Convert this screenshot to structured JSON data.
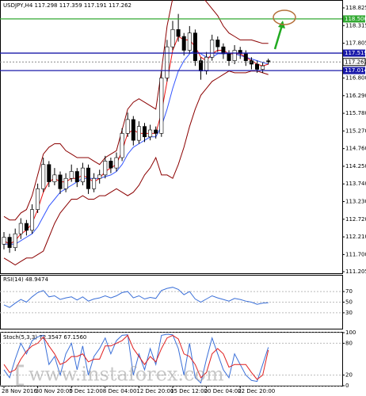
{
  "chart_data": [
    {
      "type": "candlestick",
      "title": "USDJPY,H4 117.298 117.359 117.191 117.262",
      "categories": [
        "28 Nov 2016",
        null,
        null,
        null,
        null,
        null,
        "30 Nov 20:00",
        null,
        null,
        null,
        null,
        null,
        "5 Dec 12:00",
        null,
        null,
        null,
        null,
        null,
        "8 Dec 04:00",
        null,
        null,
        null,
        null,
        null,
        "12 Dec 20:00",
        null,
        null,
        null,
        null,
        null,
        "15 Dec 12:00",
        null,
        null,
        null,
        null,
        null,
        "20 Dec 04:00",
        null,
        null,
        null,
        null,
        null,
        "22 Dec 20:00",
        null,
        null,
        null,
        null,
        null
      ],
      "candles": [
        [
          112.0,
          112.35,
          111.85,
          112.2
        ],
        [
          112.2,
          112.3,
          111.75,
          111.9
        ],
        [
          111.9,
          112.45,
          111.8,
          112.3
        ],
        [
          112.3,
          112.75,
          112.15,
          112.6
        ],
        [
          112.6,
          112.7,
          112.25,
          112.4
        ],
        [
          112.4,
          113.15,
          112.3,
          113.0
        ],
        [
          113.0,
          113.75,
          112.9,
          113.6
        ],
        [
          113.6,
          114.5,
          113.5,
          114.3
        ],
        [
          114.3,
          114.4,
          113.65,
          113.8
        ],
        [
          113.8,
          114.2,
          113.7,
          114.0
        ],
        [
          114.0,
          114.1,
          113.45,
          113.6
        ],
        [
          113.6,
          114.05,
          113.5,
          113.9
        ],
        [
          113.9,
          114.3,
          113.8,
          114.1
        ],
        [
          114.1,
          114.2,
          113.65,
          113.8
        ],
        [
          113.8,
          114.35,
          113.7,
          114.2
        ],
        [
          114.2,
          114.3,
          113.45,
          113.6
        ],
        [
          113.6,
          114.05,
          113.5,
          113.9
        ],
        [
          113.9,
          114.15,
          113.75,
          114.0
        ],
        [
          114.0,
          114.55,
          113.9,
          114.4
        ],
        [
          114.4,
          114.5,
          114.05,
          114.2
        ],
        [
          114.2,
          114.65,
          114.1,
          114.5
        ],
        [
          114.5,
          115.35,
          114.4,
          115.2
        ],
        [
          115.2,
          115.8,
          115.1,
          115.6
        ],
        [
          115.6,
          115.7,
          114.85,
          115.0
        ],
        [
          115.0,
          115.55,
          114.9,
          115.4
        ],
        [
          115.4,
          115.5,
          114.95,
          115.1
        ],
        [
          115.1,
          115.45,
          115.0,
          115.3
        ],
        [
          115.3,
          115.4,
          115.05,
          115.2
        ],
        [
          115.2,
          117.0,
          115.1,
          116.8
        ],
        [
          116.8,
          117.9,
          116.7,
          117.7
        ],
        [
          117.7,
          118.45,
          117.6,
          118.2
        ],
        [
          118.2,
          118.65,
          117.85,
          118.0
        ],
        [
          118.0,
          118.1,
          117.45,
          117.6
        ],
        [
          117.6,
          118.3,
          117.5,
          118.1
        ],
        [
          118.1,
          118.2,
          117.15,
          117.3
        ],
        [
          117.3,
          117.4,
          116.75,
          117.0
        ],
        [
          117.0,
          117.55,
          116.9,
          117.4
        ],
        [
          117.4,
          118.05,
          117.3,
          117.9
        ],
        [
          117.9,
          118.0,
          117.55,
          117.7
        ],
        [
          117.7,
          117.8,
          117.35,
          117.5
        ],
        [
          117.5,
          117.6,
          117.15,
          117.3
        ],
        [
          117.3,
          117.75,
          117.2,
          117.6
        ],
        [
          117.6,
          117.7,
          117.35,
          117.5
        ],
        [
          117.5,
          117.6,
          117.15,
          117.3
        ],
        [
          117.3,
          117.4,
          117.05,
          117.2
        ],
        [
          117.2,
          117.3,
          116.95,
          117.05
        ],
        [
          117.05,
          117.25,
          116.95,
          117.15
        ],
        [
          117.298,
          117.359,
          117.191,
          117.262
        ]
      ],
      "lines": [
        {
          "color": "#8b0000",
          "values": [
            112.8,
            112.7,
            112.7,
            112.9,
            113.0,
            113.4,
            114.0,
            114.6,
            114.8,
            114.9,
            114.9,
            114.7,
            114.6,
            114.5,
            114.5,
            114.5,
            114.4,
            114.3,
            114.5,
            114.6,
            114.7,
            115.3,
            115.9,
            116.1,
            116.2,
            116.1,
            116.0,
            115.9,
            117.0,
            118.3,
            119.1,
            119.4,
            119.4,
            119.4,
            119.3,
            119.2,
            119.0,
            118.8,
            118.6,
            118.3,
            118.1,
            118.0,
            117.9,
            117.9,
            117.9,
            117.85,
            117.8,
            117.8
          ]
        },
        {
          "color": "#8b0000",
          "values": [
            111.6,
            111.5,
            111.4,
            111.5,
            111.6,
            111.6,
            111.7,
            111.8,
            112.2,
            112.6,
            112.9,
            113.1,
            113.3,
            113.3,
            113.4,
            113.3,
            113.3,
            113.4,
            113.4,
            113.5,
            113.6,
            113.5,
            113.4,
            113.5,
            113.7,
            114.0,
            114.2,
            114.5,
            114.0,
            114.0,
            113.9,
            114.3,
            114.8,
            115.4,
            115.9,
            116.3,
            116.5,
            116.7,
            116.8,
            116.9,
            117.0,
            116.95,
            116.95,
            116.95,
            117.0,
            117.0,
            116.95,
            116.9
          ]
        },
        {
          "color": "#3355ff",
          "values": [
            112.0,
            112.0,
            112.0,
            112.1,
            112.2,
            112.3,
            112.5,
            112.8,
            113.1,
            113.3,
            113.5,
            113.6,
            113.7,
            113.8,
            113.9,
            113.9,
            113.9,
            113.9,
            113.95,
            114.0,
            114.1,
            114.3,
            114.6,
            114.8,
            114.9,
            115.0,
            115.1,
            115.1,
            115.4,
            115.9,
            116.5,
            117.0,
            117.3,
            117.5,
            117.6,
            117.5,
            117.4,
            117.4,
            117.5,
            117.5,
            117.5,
            117.5,
            117.45,
            117.4,
            117.35,
            117.3,
            117.25,
            117.2
          ]
        },
        {
          "color": "#ee1111",
          "values": [
            112.1,
            112.0,
            112.1,
            112.3,
            112.4,
            112.6,
            113.0,
            113.5,
            113.8,
            113.9,
            113.8,
            113.8,
            113.9,
            113.9,
            114.0,
            113.9,
            113.8,
            113.9,
            114.1,
            114.2,
            114.3,
            114.7,
            115.2,
            115.3,
            115.2,
            115.2,
            115.2,
            115.2,
            115.8,
            116.7,
            117.6,
            118.0,
            117.9,
            117.9,
            117.7,
            117.4,
            117.3,
            117.5,
            117.6,
            117.6,
            117.5,
            117.5,
            117.5,
            117.4,
            117.3,
            117.2,
            117.15,
            117.2
          ]
        }
      ],
      "levels": [
        {
          "value": 118.506,
          "color": "#33aa33"
        },
        {
          "value": 117.519,
          "color": "#1a1aaa"
        },
        {
          "value": 117.014,
          "color": "#1a1aaa"
        }
      ],
      "ylim": [
        111.16,
        119.03
      ],
      "yticks": [
        118.825,
        118.315,
        117.805,
        {
          "value": 116.8,
          "label": "116.800"
        },
        {
          "value": 116.29,
          "label": "116.290"
        },
        {
          "value": 115.78,
          "label": "115.780"
        },
        {
          "value": 115.27,
          "label": "115.270"
        },
        {
          "value": 114.76,
          "label": "114.760"
        },
        {
          "value": 114.25,
          "label": "114.250"
        },
        {
          "value": 113.74,
          "label": "113.740"
        },
        {
          "value": 113.23,
          "label": "113.230"
        },
        {
          "value": 112.72,
          "label": "112.720"
        },
        {
          "value": 112.21,
          "label": "112.210"
        },
        {
          "value": 111.7,
          "label": "111.700"
        },
        111.205
      ],
      "watermark": "www.instaforex.com"
    },
    {
      "type": "line",
      "title": "RSI(14) 48.9474",
      "series": [
        {
          "color": "#3a6fd8",
          "values": [
            45,
            40,
            48,
            55,
            50,
            60,
            68,
            72,
            60,
            62,
            55,
            58,
            60,
            54,
            60,
            52,
            56,
            58,
            62,
            58,
            62,
            68,
            70,
            58,
            62,
            56,
            59,
            57,
            72,
            76,
            78,
            74,
            64,
            70,
            56,
            50,
            56,
            62,
            58,
            55,
            52,
            57,
            55,
            52,
            50,
            46,
            48,
            48.9474
          ]
        }
      ],
      "ylim": [
        0,
        100
      ],
      "yticks": [
        70,
        50,
        30
      ]
    },
    {
      "type": "line",
      "title": "Stoch(5,3,3) 72.3547 67.1560",
      "series": [
        {
          "color": "#3a6fd8",
          "values": [
            30,
            15,
            50,
            80,
            60,
            85,
            92,
            95,
            40,
            55,
            20,
            60,
            80,
            30,
            75,
            20,
            55,
            70,
            90,
            60,
            85,
            95,
            96,
            20,
            60,
            30,
            70,
            40,
            95,
            97,
            96,
            70,
            20,
            80,
            15,
            5,
            50,
            90,
            60,
            30,
            15,
            60,
            40,
            20,
            10,
            8,
            40,
            72.3547
          ]
        },
        {
          "color": "#e02020",
          "values": [
            40,
            25,
            30,
            50,
            65,
            75,
            80,
            92,
            75,
            60,
            40,
            45,
            55,
            55,
            60,
            45,
            50,
            50,
            75,
            75,
            80,
            85,
            95,
            70,
            55,
            40,
            55,
            45,
            70,
            90,
            95,
            88,
            60,
            55,
            40,
            15,
            25,
            60,
            70,
            60,
            35,
            40,
            40,
            40,
            25,
            12,
            20,
            67.156
          ]
        }
      ],
      "ylim": [
        0,
        100
      ],
      "yticks": [
        100,
        80,
        20,
        0
      ]
    }
  ]
}
